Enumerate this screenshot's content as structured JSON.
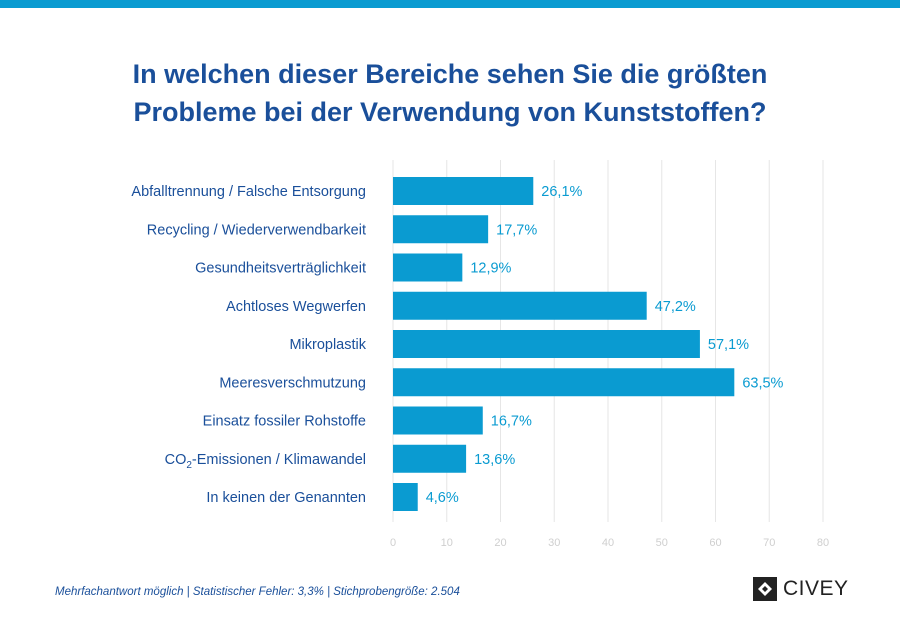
{
  "title_line1": "In welchen dieser Bereiche sehen Sie die größten",
  "title_line2": "Probleme bei der Verwendung von Kunststoffen?",
  "footnote": "Mehrfachantwort möglich  |  Statistischer Fehler: 3,3%  |  Stichprobengröße: 2.504",
  "brand": "CIVEY",
  "colors": {
    "accent": "#0a9bd1",
    "title": "#1a4f9a",
    "axis_label": "#1a4f9a",
    "grid": "#e6e6e6",
    "tick": "#cfcfcf"
  },
  "chart_data": {
    "type": "bar",
    "orientation": "horizontal",
    "categories": [
      "Abfalltrennung / Falsche Entsorgung",
      "Recycling / Wiederverwendbarkeit",
      "Gesundheitsverträglichkeit",
      "Achtloses Wegwerfen",
      "Mikroplastik",
      "Meeresverschmutzung",
      "Einsatz fossiler Rohstoffe",
      "CO2-Emissionen / Klimawandel",
      "In keinen der Genannten"
    ],
    "values": [
      26.1,
      17.7,
      12.9,
      47.2,
      57.1,
      63.5,
      16.7,
      13.6,
      4.6
    ],
    "value_labels": [
      "26,1%",
      "17,7%",
      "12,9%",
      "47,2%",
      "57,1%",
      "63,5%",
      "16,7%",
      "13,6%",
      "4,6%"
    ],
    "xlim": [
      0,
      80
    ],
    "xticks": [
      0,
      10,
      20,
      30,
      40,
      50,
      60,
      70,
      80
    ],
    "grid": true
  }
}
